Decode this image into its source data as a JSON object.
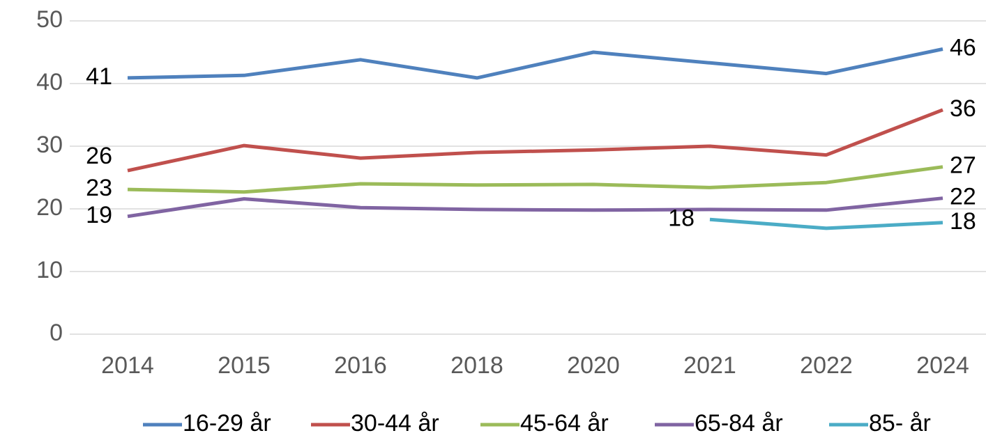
{
  "chart_data": {
    "type": "line",
    "categories": [
      "2014",
      "2015",
      "2016",
      "2018",
      "2020",
      "2021",
      "2022",
      "2024"
    ],
    "series": [
      {
        "name": "16-29 år",
        "color": "#4f81bd",
        "values": [
          40.9,
          41.3,
          43.8,
          40.9,
          45.0,
          43.3,
          41.6,
          45.5
        ],
        "value_labels": [
          "41",
          null,
          null,
          null,
          null,
          null,
          null,
          "46"
        ]
      },
      {
        "name": "30-44 år",
        "color": "#c0504d",
        "values": [
          26.1,
          30.1,
          28.1,
          29.0,
          29.4,
          30.0,
          28.6,
          35.8
        ],
        "value_labels": [
          "26",
          null,
          null,
          null,
          null,
          null,
          null,
          "36"
        ]
      },
      {
        "name": "45-64 år",
        "color": "#9bbb59",
        "values": [
          23.1,
          22.7,
          24.0,
          23.8,
          23.9,
          23.4,
          24.2,
          26.7
        ],
        "value_labels": [
          "23",
          null,
          null,
          null,
          null,
          null,
          null,
          "27"
        ]
      },
      {
        "name": "65-84 år",
        "color": "#8064a2",
        "values": [
          18.8,
          21.6,
          20.2,
          19.9,
          19.8,
          19.9,
          19.8,
          21.7
        ],
        "value_labels": [
          "19",
          null,
          null,
          null,
          null,
          null,
          null,
          "22"
        ]
      },
      {
        "name": "85- år",
        "color": "#4bacc6",
        "values": [
          null,
          null,
          null,
          null,
          null,
          18.3,
          16.9,
          17.8
        ],
        "value_labels": [
          null,
          null,
          null,
          null,
          null,
          "18",
          null,
          "18"
        ]
      }
    ],
    "ylim": [
      0,
      50
    ],
    "yticks": [
      0,
      10,
      20,
      30,
      40,
      50
    ],
    "grid": true,
    "legend": "bottom"
  }
}
